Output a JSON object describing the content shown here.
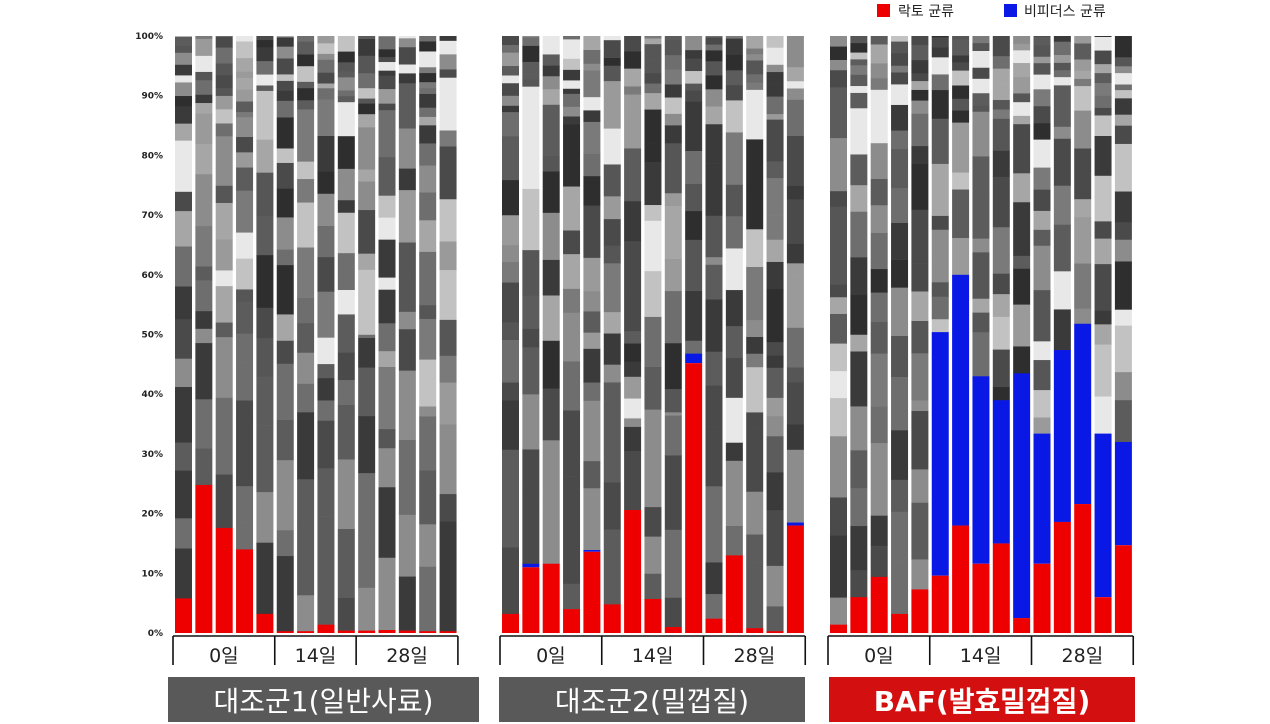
{
  "colors": {
    "lacto": "#ee0000",
    "bifido": "#0a18e6",
    "greys": [
      "#4a4a4a",
      "#6e6e6e",
      "#3a3a3a",
      "#8c8c8c",
      "#5c5c5c",
      "#a6a6a6",
      "#2e2e2e",
      "#7a7a7a",
      "#c2c2c2",
      "#565656",
      "#9a9a9a",
      "#e8e8e8"
    ],
    "banner_grey": "#595959",
    "banner_red": "#d40f0f"
  },
  "chart_data": {
    "type": "bar",
    "stacked": true,
    "percent_scale": true,
    "ylim": [
      0,
      100
    ],
    "yticks": [
      "0%",
      "10%",
      "20%",
      "30%",
      "40%",
      "50%",
      "60%",
      "70%",
      "80%",
      "90%",
      "100%"
    ],
    "legend": {
      "position": "top-right",
      "entries": [
        {
          "name": "락토 균류",
          "color": "#ee0000"
        },
        {
          "name": "비피더스 균류",
          "color": "#0a18e6"
        }
      ]
    },
    "groups": [
      {
        "name": "대조군1(일반사료)",
        "banner": "grey",
        "days": [
          {
            "label": "0일",
            "lacto": [
              5.8,
              24.8,
              17.6,
              14.0,
              3.2
            ],
            "bifido": [
              0,
              0,
              0,
              0,
              0
            ],
            "dark_top": [
              46,
              51,
              50,
              39,
              43
            ]
          },
          {
            "label": "14일",
            "lacto": [
              0.3,
              0.3,
              1.4,
              0.4
            ],
            "bifido": [
              0,
              0,
              0,
              0
            ],
            "dark_top": [
              49,
              48,
              39,
              47
            ]
          },
          {
            "label": "28일",
            "lacto": [
              0.4,
              0.5,
              0.4,
              0.3,
              0.3
            ],
            "bifido": [
              0,
              0,
              0,
              0,
              0
            ],
            "dark_top": [
              50,
              31,
              44,
              38,
              35
            ]
          }
        ]
      },
      {
        "name": "대조군2(밀껍질)",
        "banner": "grey",
        "days": [
          {
            "label": "0일",
            "lacto": [
              3.2,
              11.0,
              11.6,
              4.0,
              13.6
            ],
            "bifido": [
              0,
              0.6,
              0,
              0,
              0.3
            ],
            "dark_top": [
              42,
              51,
              41,
              51,
              42
            ]
          },
          {
            "label": "14일",
            "lacto": [
              4.8,
              20.6,
              5.7,
              1.0,
              45.2
            ],
            "bifido": [
              0,
              0,
              0,
              0,
              1.6
            ],
            "dark_top": [
              45,
              36,
              53,
              37,
              49
            ]
          },
          {
            "label": "28일",
            "lacto": [
              2.4,
              13.0,
              0.8,
              0.3,
              18.0
            ],
            "bifido": [
              0,
              0,
              0,
              0,
              0.5
            ],
            "dark_top": [
              63,
              29,
              37,
              33,
              42
            ]
          }
        ]
      },
      {
        "name": "BAF(발효밀껍질)",
        "banner": "red",
        "days": [
          {
            "label": "0일",
            "lacto": [
              1.4,
              6.0,
              9.4,
              3.2,
              7.3
            ],
            "bifido": [
              0,
              0,
              0,
              0,
              0
            ],
            "dark_top": [
              33,
              38,
              38,
              34,
              39
            ]
          },
          {
            "label": "14일",
            "lacto": [
              9.6,
              18.0,
              11.6,
              15.0,
              2.5
            ],
            "bifido": [
              40.8,
              42.0,
              31.4,
              24.0,
              41.0
            ],
            "dark_top": [
              50.4,
              60,
              43,
              39,
              43.5
            ]
          },
          {
            "label": "28일",
            "lacto": [
              11.6,
              18.6,
              21.6,
              6.0,
              14.7
            ],
            "bifido": [
              21.8,
              28.8,
              30.2,
              27.4,
              17.3
            ],
            "dark_top": [
              33.4,
              47.4,
              51.8,
              33.4,
              32
            ]
          }
        ]
      }
    ]
  }
}
